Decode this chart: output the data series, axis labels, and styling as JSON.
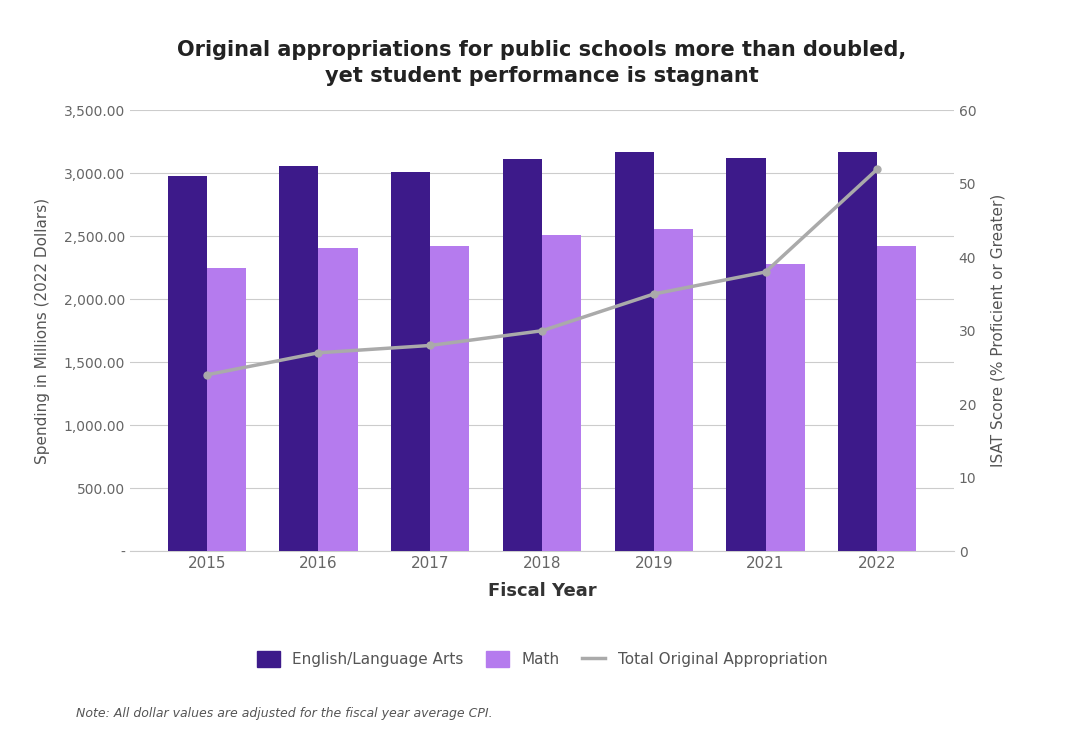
{
  "years": [
    2015,
    2016,
    2017,
    2018,
    2019,
    2021,
    2022
  ],
  "ela_values": [
    2980,
    3060,
    3010,
    3110,
    3170,
    3120,
    3165
  ],
  "math_values": [
    2250,
    2410,
    2420,
    2510,
    2560,
    2280,
    2420
  ],
  "line_values": [
    24,
    27,
    28,
    30,
    35,
    38,
    52
  ],
  "ela_color": "#3d1a8a",
  "math_color": "#b57bee",
  "line_color": "#aaaaaa",
  "title": "Original appropriations for public schools more than doubled,\nyet student performance is stagnant",
  "xlabel": "Fiscal Year",
  "ylabel_left": "Spending in Millions (2022 Dollars)",
  "ylabel_right": "ISAT Score (% Proficient or Greater)",
  "ylim_left": [
    0,
    3500
  ],
  "ylim_right": [
    0,
    60
  ],
  "yticks_left": [
    0,
    500,
    1000,
    1500,
    2000,
    2500,
    3000,
    3500
  ],
  "ytick_labels_left": [
    "-",
    "500.00",
    "1,000.00",
    "1,500.00",
    "2,000.00",
    "2,500.00",
    "3,000.00",
    "3,500.00"
  ],
  "yticks_right": [
    0,
    10,
    20,
    30,
    40,
    50,
    60
  ],
  "legend_ela": "English/Language Arts",
  "legend_math": "Math",
  "legend_line": "Total Original Appropriation",
  "note": "Note: All dollar values are adjusted for the fiscal year average CPI.",
  "background_color": "#ffffff",
  "bar_width": 0.35
}
